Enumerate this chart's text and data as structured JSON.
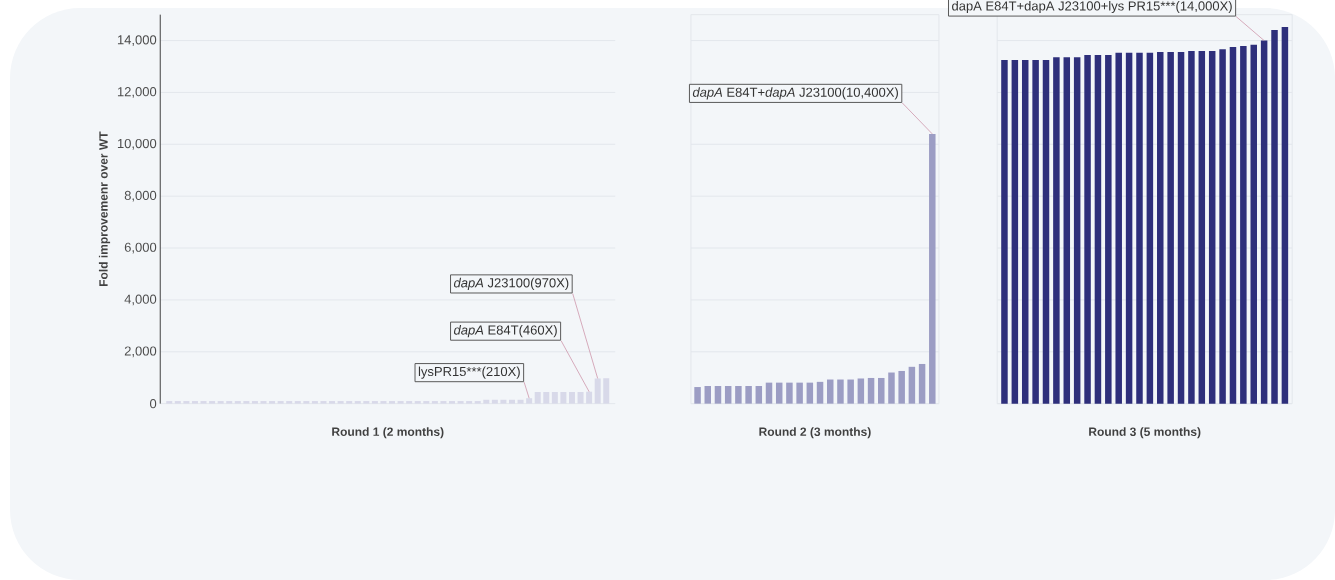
{
  "chart_data": [
    {
      "type": "bar",
      "xlabel": "Round 1 (2 months)",
      "ylabel": "Fold improvemenr over WT",
      "color": "#d8d9e9",
      "grid": "y",
      "tick_labels": "y",
      "categories": [
        null,
        null,
        null,
        null,
        null,
        null,
        null,
        null,
        null,
        null,
        null,
        null,
        null,
        null,
        null,
        null,
        null,
        null,
        null,
        null,
        null,
        null,
        null,
        null,
        null,
        null,
        null,
        null,
        null,
        null,
        null,
        null,
        null,
        null,
        null,
        null,
        null,
        null,
        null,
        null,
        null,
        null,
        null,
        null,
        null,
        null,
        null,
        null,
        null,
        null,
        null,
        null
      ],
      "values": [
        100,
        100,
        100,
        100,
        100,
        100,
        100,
        100,
        100,
        100,
        100,
        100,
        100,
        100,
        100,
        100,
        100,
        100,
        100,
        100,
        100,
        100,
        100,
        100,
        100,
        100,
        100,
        100,
        100,
        100,
        100,
        100,
        100,
        100,
        100,
        100,
        100,
        150,
        150,
        150,
        150,
        150,
        210,
        450,
        450,
        450,
        450,
        450,
        450,
        460,
        970,
        980
      ],
      "ylim": [
        0,
        15000
      ],
      "yticks": [
        0,
        {
          "value": 2000,
          "label": "2,000"
        },
        {
          "value": 4000,
          "label": "4,000"
        },
        {
          "value": 6000,
          "label": "6,000"
        },
        {
          "value": 8000,
          "label": "8,000"
        },
        {
          "value": 10000,
          "label": "10,000"
        },
        {
          "value": 12000,
          "label": "12,000"
        },
        {
          "value": 14000,
          "label": "14,000"
        }
      ],
      "annotations": [
        "*dapA* J23100(970X)",
        "*dapA* E84T(460X)",
        "lysPR15***(210X)"
      ]
    },
    {
      "type": "bar",
      "xlabel": "Round 2 (3 months)",
      "color": "#9c9dc4",
      "grid": "y",
      "tick_labels": false,
      "categories": [
        null,
        null,
        null,
        null,
        null,
        null,
        null,
        null,
        null,
        null,
        null,
        null,
        null,
        null,
        null,
        null,
        null,
        null,
        null,
        null,
        null,
        null,
        null,
        null
      ],
      "values": [
        640,
        680,
        680,
        680,
        680,
        680,
        680,
        810,
        810,
        810,
        810,
        810,
        840,
        930,
        930,
        930,
        970,
        990,
        990,
        1200,
        1260,
        1420,
        1530,
        10400
      ],
      "ylim": [
        0,
        15000
      ],
      "yticks": [
        0,
        2000,
        4000,
        6000,
        8000,
        10000,
        12000,
        14000
      ],
      "annotations": [
        "*dapA* E84T+*dapA* J23100(10,400X)"
      ]
    },
    {
      "type": "bar",
      "xlabel": "Round 3 (5 months)",
      "color": "#2e2f7b",
      "grid": "y",
      "tick_labels": false,
      "categories": [
        null,
        null,
        null,
        null,
        null,
        null,
        null,
        null,
        null,
        null,
        null,
        null,
        null,
        null,
        null,
        null,
        null,
        null,
        null,
        null,
        null,
        null,
        null,
        null,
        null,
        null,
        null,
        null
      ],
      "values": [
        13250,
        13250,
        13250,
        13250,
        13250,
        13360,
        13360,
        13360,
        13440,
        13440,
        13440,
        13530,
        13530,
        13530,
        13530,
        13560,
        13560,
        13560,
        13600,
        13600,
        13600,
        13670,
        13750,
        13790,
        13840,
        14000,
        14410,
        14520
      ],
      "ylim": [
        0,
        15000
      ],
      "yticks": [
        0,
        2000,
        4000,
        6000,
        8000,
        10000,
        12000,
        14000
      ],
      "annotations": [
        "dapA E84T+dapA J23100+lys PR15***(14,000X)"
      ]
    }
  ]
}
